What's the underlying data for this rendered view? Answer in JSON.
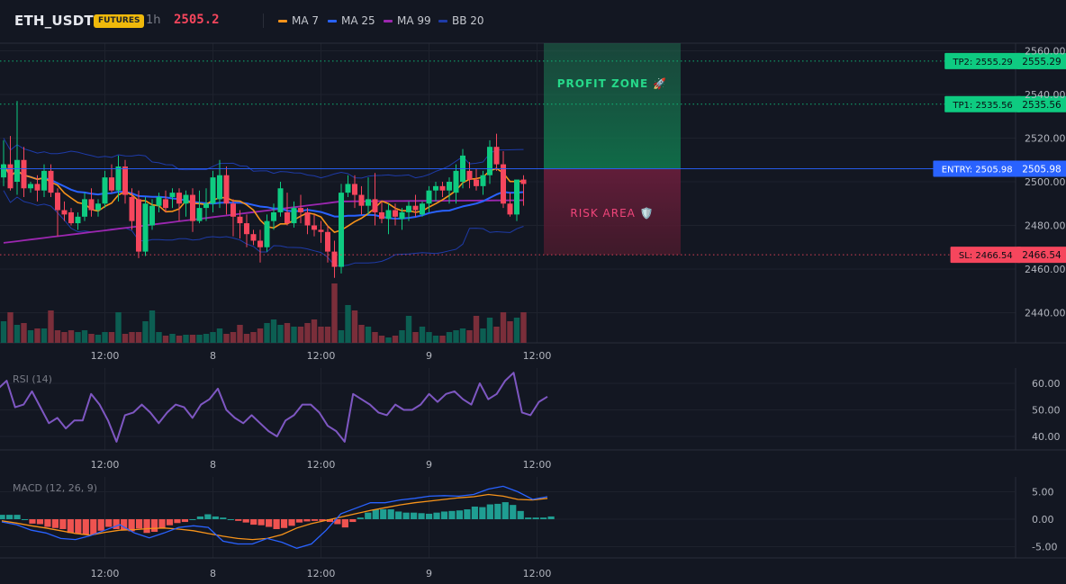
{
  "header": {
    "symbol": "ETH_USDT",
    "badge": "FUTURES",
    "timeframe": "1h",
    "price": "2505.2",
    "legend": [
      {
        "label": "MA 7",
        "color": "#f7931a"
      },
      {
        "label": "MA 25",
        "color": "#2962ff"
      },
      {
        "label": "MA 99",
        "color": "#9c27b0"
      },
      {
        "label": "BB 20",
        "color": "#1e3ba8"
      }
    ]
  },
  "chart_data": [
    {
      "type": "candlestick",
      "title": "ETH_USDT",
      "ylim": [
        2425,
        2563
      ],
      "y_ticks": [
        "2560.00",
        "2540.00",
        "2520.00",
        "2500.00",
        "2480.00",
        "2460.00",
        "2440.00"
      ],
      "x_ticks": [
        "12:00",
        "8",
        "12:00",
        "9",
        "12:00"
      ],
      "x_tick_index": [
        16,
        32,
        48,
        64,
        80
      ],
      "colors": {
        "up": "#0ecb81",
        "down": "#f6465d",
        "vol_up": "#0c5e52",
        "vol_down": "#7a2e3a"
      },
      "levels": [
        {
          "label": "TP2: 2555.29",
          "value": 2555.29,
          "axis_label": "2555.29",
          "color": "#0ecb81"
        },
        {
          "label": "TP1: 2535.56",
          "value": 2535.56,
          "axis_label": "2535.56",
          "color": "#0ecb81"
        },
        {
          "label": "ENTRY: 2505.98",
          "value": 2505.98,
          "axis_label": "2505.98",
          "color": "#2962ff"
        },
        {
          "label": "SL: 2466.54",
          "value": 2466.54,
          "axis_label": "2466.54",
          "color": "#f6465d"
        }
      ],
      "zones": {
        "profit": "PROFIT ZONE 🚀",
        "risk": "RISK AREA 🛡️"
      },
      "ohlc": [
        [
          2502,
          2519,
          2498,
          2508
        ],
        [
          2508,
          2521,
          2496,
          2497
        ],
        [
          2500,
          2537,
          2494,
          2510
        ],
        [
          2510,
          2516,
          2493,
          2497
        ],
        [
          2497,
          2500,
          2495,
          2499
        ],
        [
          2499,
          2503,
          2491,
          2496
        ],
        [
          2496,
          2508,
          2493,
          2505
        ],
        [
          2505,
          2508,
          2493,
          2495
        ],
        [
          2495,
          2497,
          2475,
          2487
        ],
        [
          2487,
          2491,
          2482,
          2485
        ],
        [
          2486,
          2488,
          2480,
          2481
        ],
        [
          2481,
          2486,
          2478,
          2484
        ],
        [
          2484,
          2495,
          2482,
          2492
        ],
        [
          2492,
          2497,
          2484,
          2487
        ],
        [
          2487,
          2492,
          2484,
          2490
        ],
        [
          2490,
          2505,
          2488,
          2502
        ],
        [
          2502,
          2508,
          2495,
          2496
        ],
        [
          2496,
          2512,
          2491,
          2507
        ],
        [
          2507,
          2510,
          2490,
          2494
        ],
        [
          2493,
          2497,
          2478,
          2482
        ],
        [
          2492,
          2496,
          2465,
          2468
        ],
        [
          2468,
          2493,
          2466,
          2490
        ],
        [
          2480,
          2492,
          2478,
          2489
        ],
        [
          2489,
          2495,
          2486,
          2493
        ],
        [
          2492,
          2496,
          2486,
          2488
        ],
        [
          2493,
          2497,
          2488,
          2495
        ],
        [
          2495,
          2497,
          2482,
          2490
        ],
        [
          2490,
          2496,
          2484,
          2494
        ],
        [
          2494,
          2497,
          2477,
          2482
        ],
        [
          2482,
          2496,
          2481,
          2488
        ],
        [
          2488,
          2497,
          2482,
          2490
        ],
        [
          2490,
          2505,
          2486,
          2502
        ],
        [
          2492,
          2510,
          2488,
          2503
        ],
        [
          2503,
          2507,
          2485,
          2490
        ],
        [
          2490,
          2492,
          2475,
          2484
        ],
        [
          2484,
          2487,
          2474,
          2481
        ],
        [
          2481,
          2485,
          2470,
          2476
        ],
        [
          2476,
          2478,
          2471,
          2473
        ],
        [
          2473,
          2478,
          2463,
          2470
        ],
        [
          2470,
          2485,
          2468,
          2482
        ],
        [
          2482,
          2490,
          2478,
          2486
        ],
        [
          2486,
          2500,
          2484,
          2497
        ],
        [
          2486,
          2495,
          2480,
          2481
        ],
        [
          2481,
          2491,
          2479,
          2488
        ],
        [
          2488,
          2494,
          2481,
          2486
        ],
        [
          2486,
          2488,
          2476,
          2480
        ],
        [
          2480,
          2485,
          2475,
          2478
        ],
        [
          2478,
          2482,
          2472,
          2477
        ],
        [
          2477,
          2480,
          2463,
          2468
        ],
        [
          2468,
          2473,
          2456,
          2461
        ],
        [
          2461,
          2499,
          2458,
          2495
        ],
        [
          2495,
          2503,
          2493,
          2499
        ],
        [
          2499,
          2503,
          2488,
          2494
        ],
        [
          2494,
          2498,
          2485,
          2489
        ],
        [
          2489,
          2502,
          2485,
          2492
        ],
        [
          2492,
          2504,
          2480,
          2486
        ],
        [
          2486,
          2491,
          2481,
          2483
        ],
        [
          2483,
          2490,
          2476,
          2487
        ],
        [
          2487,
          2490,
          2480,
          2484
        ],
        [
          2483,
          2488,
          2478,
          2486
        ],
        [
          2486,
          2491,
          2482,
          2489
        ],
        [
          2489,
          2494,
          2484,
          2487
        ],
        [
          2485,
          2491,
          2484,
          2490
        ],
        [
          2490,
          2498,
          2486,
          2496
        ],
        [
          2496,
          2500,
          2491,
          2498
        ],
        [
          2498,
          2500,
          2493,
          2496
        ],
        [
          2496,
          2502,
          2490,
          2500
        ],
        [
          2495,
          2508,
          2490,
          2505
        ],
        [
          2500,
          2515,
          2497,
          2512
        ],
        [
          2505,
          2509,
          2497,
          2501
        ],
        [
          2501,
          2506,
          2496,
          2498
        ],
        [
          2498,
          2505,
          2494,
          2503
        ],
        [
          2503,
          2519,
          2499,
          2516
        ],
        [
          2516,
          2522,
          2505,
          2508
        ],
        [
          2508,
          2514,
          2488,
          2490
        ],
        [
          2490,
          2495,
          2484,
          2485
        ],
        [
          2485,
          2500,
          2482,
          2501
        ],
        [
          2501,
          2503,
          2489,
          2499
        ]
      ],
      "volume": [
        24,
        34,
        20,
        22,
        14,
        16,
        16,
        36,
        14,
        12,
        14,
        12,
        14,
        10,
        9,
        12,
        12,
        34,
        10,
        12,
        12,
        24,
        36,
        12,
        8,
        10,
        8,
        9,
        9,
        9,
        10,
        12,
        16,
        10,
        12,
        20,
        10,
        12,
        16,
        22,
        26,
        20,
        22,
        18,
        18,
        22,
        26,
        18,
        18,
        66,
        14,
        42,
        36,
        20,
        18,
        12,
        8,
        6,
        8,
        14,
        30,
        12,
        18,
        12,
        8,
        8,
        12,
        14,
        16,
        14,
        30,
        16,
        28,
        18,
        34,
        24,
        28,
        34,
        24,
        12,
        8
      ]
    },
    {
      "type": "line",
      "title": "RSI (14)",
      "ylim": [
        34,
        64
      ],
      "y_ticks": [
        "60.00",
        "50.00",
        "40.00"
      ],
      "x_ticks": [
        "12:00",
        "8",
        "12:00",
        "9",
        "12:00"
      ],
      "values": [
        58,
        61,
        51,
        52,
        57,
        51,
        45,
        47,
        43,
        46,
        46,
        56,
        52,
        46,
        38,
        48,
        49,
        52,
        49,
        45,
        49,
        52,
        51,
        47,
        52,
        54,
        58,
        50,
        47,
        45,
        48,
        45,
        42,
        40,
        46,
        48,
        52,
        52,
        49,
        44,
        42,
        38,
        56,
        54,
        52,
        49,
        48,
        52,
        50,
        50,
        52,
        56,
        53,
        56,
        57,
        54,
        52,
        60,
        54,
        56,
        61,
        64,
        49,
        48,
        53,
        55
      ],
      "color": "#7e57c2"
    },
    {
      "type": "bar",
      "title": "MACD (12, 26, 9)",
      "ylim": [
        -7.5,
        7.5
      ],
      "y_ticks": [
        "5.00",
        "0.00",
        "-5.00"
      ],
      "x_ticks": [
        "12:00",
        "8",
        "12:00",
        "9",
        "12:00"
      ],
      "histogram": [
        0.8,
        0.8,
        0.8,
        0,
        -0.8,
        -0.9,
        -1.4,
        -1.6,
        -1.8,
        -2.5,
        -2.6,
        -2.8,
        -2.8,
        -2.1,
        -1.4,
        -1.8,
        -2,
        -2.2,
        -1.7,
        -2.5,
        -2.3,
        -1.7,
        -1.1,
        -0.7,
        -0.5,
        0,
        0.5,
        0.9,
        0.5,
        0.3,
        0,
        -0.3,
        -0.6,
        -1,
        -1.1,
        -1.4,
        -1.8,
        -1.6,
        -1.2,
        -0.6,
        -0.4,
        -0.3,
        -0.3,
        -0.5,
        -0.9,
        -1.5,
        -0.5,
        0.3,
        1.2,
        1.8,
        1.8,
        1.8,
        1.4,
        1.2,
        1.2,
        1.1,
        1,
        1.2,
        1.4,
        1.5,
        1.6,
        1.8,
        2.3,
        2.2,
        2.7,
        2.8,
        3.1,
        2.6,
        1.5,
        0.3,
        0.3,
        0.3,
        0.5
      ],
      "macd": [
        -0.5,
        -1,
        -2,
        -2.5,
        -3.5,
        -3.7,
        -3,
        -2,
        -1,
        -2.5,
        -3.4,
        -2.5,
        -1.5,
        -1.2,
        -1.5,
        -4,
        -4.5,
        -4.5,
        -3.5,
        -4.2,
        -5.3,
        -4.5,
        -2,
        1,
        2,
        3,
        3,
        3.5,
        3.8,
        4.2,
        4.3,
        4.2,
        4.5,
        5.5,
        6,
        5,
        3.6,
        4.1
      ],
      "signal": [
        -0.3,
        -0.7,
        -1.2,
        -1.6,
        -2.1,
        -2.6,
        -2.9,
        -2.4,
        -2,
        -1.9,
        -1.7,
        -1.6,
        -1.8,
        -2.1,
        -2.6,
        -3.1,
        -3.5,
        -3.7,
        -3.5,
        -2.8,
        -1.6,
        -0.8,
        -0.2,
        0.4,
        1,
        1.6,
        2.1,
        2.6,
        3,
        3.3,
        3.6,
        3.9,
        4.1,
        4.5,
        4.2,
        3.6,
        3.5,
        3.8
      ],
      "colors": {
        "pos": "#1f9e92",
        "neg": "#ef5350",
        "macd": "#2962ff",
        "signal": "#f7931a"
      }
    }
  ]
}
